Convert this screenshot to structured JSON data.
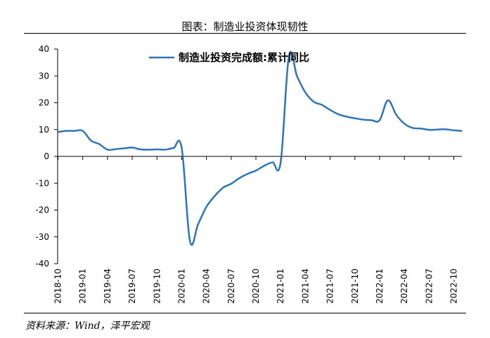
{
  "header": {
    "title": "图表：制造业投资体现韧性"
  },
  "footer": {
    "source": "资料来源：Wind，泽平宏观"
  },
  "chart_data": {
    "type": "line",
    "title": "图表：制造业投资体现韧性",
    "xlabel": "",
    "ylabel": "",
    "ylim": [
      -40,
      40
    ],
    "yticks": [
      40,
      30,
      20,
      10,
      0,
      -10,
      -20,
      -30,
      -40
    ],
    "x_tick_labels": [
      "2018-10",
      "2019-01",
      "2019-04",
      "2019-07",
      "2019-10",
      "2020-01",
      "2020-04",
      "2020-07",
      "2020-10",
      "2021-01",
      "2021-04",
      "2021-07",
      "2021-10",
      "2022-01",
      "2022-04",
      "2022-07",
      "2022-10"
    ],
    "legend_position": "top-center",
    "grid": false,
    "series": [
      {
        "name": "制造业投资完成额:累计同比",
        "color": "#2E75B6",
        "x": [
          "2018-10",
          "2018-11",
          "2018-12",
          "2019-01",
          "2019-02",
          "2019-03",
          "2019-04",
          "2019-05",
          "2019-06",
          "2019-07",
          "2019-08",
          "2019-09",
          "2019-10",
          "2019-11",
          "2019-12",
          "2020-01",
          "2020-02",
          "2020-03",
          "2020-04",
          "2020-05",
          "2020-06",
          "2020-07",
          "2020-08",
          "2020-09",
          "2020-10",
          "2020-11",
          "2020-12",
          "2021-01",
          "2021-02",
          "2021-03",
          "2021-04",
          "2021-05",
          "2021-06",
          "2021-07",
          "2021-08",
          "2021-09",
          "2021-10",
          "2021-11",
          "2021-12",
          "2022-01",
          "2022-02",
          "2022-03",
          "2022-04",
          "2022-05",
          "2022-06",
          "2022-07",
          "2022-08",
          "2022-09",
          "2022-10",
          "2022-11"
        ],
        "values": [
          9.1,
          9.5,
          9.5,
          9.5,
          5.9,
          4.6,
          2.5,
          2.7,
          3.0,
          3.3,
          2.6,
          2.5,
          2.6,
          2.5,
          3.1,
          3.1,
          -31.5,
          -25.2,
          -18.8,
          -14.8,
          -11.7,
          -10.2,
          -8.1,
          -6.5,
          -5.3,
          -3.5,
          -2.2,
          -2.2,
          37.3,
          29.8,
          23.8,
          20.4,
          19.2,
          17.3,
          15.7,
          14.8,
          14.2,
          13.7,
          13.5,
          13.5,
          20.9,
          15.6,
          12.2,
          10.6,
          10.4,
          9.9,
          10.0,
          10.1,
          9.7,
          9.5
        ]
      }
    ]
  }
}
